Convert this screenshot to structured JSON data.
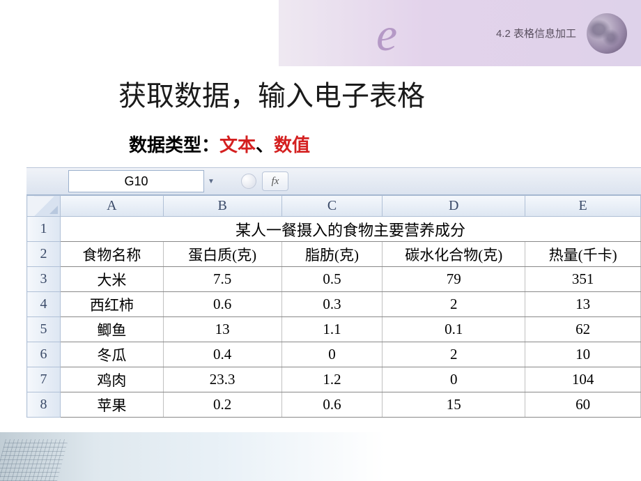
{
  "header": {
    "chapter": "4.2  表格信息加工",
    "swoosh": "e"
  },
  "slide": {
    "title": "获取数据，输入电子表格",
    "subtitle_prefix": "数据类型：",
    "subtitle_red1": "文本",
    "subtitle_sep": "、",
    "subtitle_red2": "数值"
  },
  "spreadsheet": {
    "active_cell": "G10",
    "fx_label": "fx",
    "columns": [
      "A",
      "B",
      "C",
      "D",
      "E"
    ],
    "col_widths": [
      "48px",
      "148px",
      "170px",
      "145px",
      "205px",
      "166px"
    ],
    "merged_title": "某人一餐摄入的食物主要营养成分",
    "header_row_num": "1",
    "rows": [
      {
        "num": "2",
        "cells": [
          "食物名称",
          "蛋白质(克)",
          "脂肪(克)",
          "碳水化合物(克)",
          "热量(千卡)"
        ]
      },
      {
        "num": "3",
        "cells": [
          "大米",
          "7.5",
          "0.5",
          "79",
          "351"
        ]
      },
      {
        "num": "4",
        "cells": [
          "西红柿",
          "0.6",
          "0.3",
          "2",
          "13"
        ]
      },
      {
        "num": "5",
        "cells": [
          "鲫鱼",
          "13",
          "1.1",
          "0.1",
          "62"
        ]
      },
      {
        "num": "6",
        "cells": [
          "冬瓜",
          "0.4",
          "0",
          "2",
          "10"
        ]
      },
      {
        "num": "7",
        "cells": [
          "鸡肉",
          "23.3",
          "1.2",
          "0",
          "104"
        ]
      },
      {
        "num": "8",
        "cells": [
          "苹果",
          "0.2",
          "0.6",
          "15",
          "60"
        ]
      }
    ]
  },
  "colors": {
    "red_text": "#d42020",
    "header_bg": "#dde6f2",
    "border": "#b0c0d6"
  }
}
